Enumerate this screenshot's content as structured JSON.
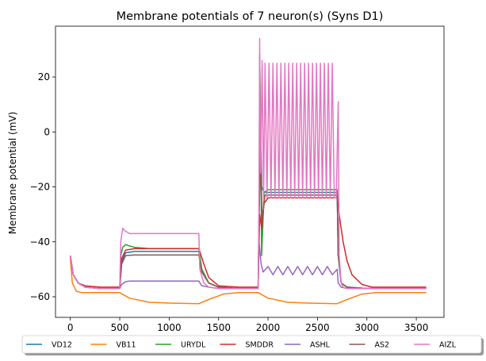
{
  "chart_data": {
    "type": "line",
    "title": "Membrane potentials of 7 neuron(s) (Syns D1)",
    "xlabel": "",
    "ylabel": "Membrane potential (mV)",
    "xlim": [
      -150,
      3780
    ],
    "ylim": [
      -67.5,
      38.5
    ],
    "xticks": [
      0,
      500,
      1000,
      1500,
      2000,
      2500,
      3000,
      3500
    ],
    "yticks": [
      -60,
      -40,
      -20,
      0,
      20
    ],
    "grid": false,
    "legend_position": "bottom-outside",
    "series": [
      {
        "name": "VD12",
        "color": "#1f77b4",
        "x": [
          0,
          30,
          80,
          150,
          300,
          500,
          520,
          560,
          650,
          900,
          1300,
          1330,
          1400,
          1500,
          1700,
          1900,
          1910,
          1925,
          1935,
          1960,
          2000,
          2100,
          2400,
          2700,
          2710,
          2740,
          2800,
          3000,
          3600
        ],
        "y": [
          -45,
          -52,
          -55,
          -56.5,
          -57,
          -57,
          -47,
          -44,
          -43.5,
          -43.5,
          -43.5,
          -50,
          -55,
          -56.5,
          -57,
          -57,
          -30,
          5,
          -20,
          -22,
          -22,
          -22,
          -22,
          -22,
          -45,
          -55,
          -56.5,
          -57,
          -57
        ]
      },
      {
        "name": "VB11",
        "color": "#ff7f0e",
        "x": [
          0,
          20,
          60,
          120,
          250,
          500,
          600,
          800,
          1000,
          1300,
          1400,
          1550,
          1700,
          1900,
          2000,
          2200,
          2400,
          2700,
          2800,
          2950,
          3100,
          3300,
          3600
        ],
        "y": [
          -46,
          -55,
          -58,
          -58.5,
          -58.5,
          -58.5,
          -60.5,
          -62,
          -62.3,
          -62.5,
          -61,
          -59,
          -58.5,
          -58.5,
          -60.5,
          -62,
          -62.3,
          -62.5,
          -61,
          -59,
          -58.5,
          -58.5,
          -58.5
        ]
      },
      {
        "name": "URYDL",
        "color": "#2ca02c",
        "x": [
          0,
          30,
          80,
          150,
          300,
          500,
          510,
          530,
          560,
          600,
          650,
          800,
          1300,
          1330,
          1400,
          1500,
          1700,
          1900,
          1910,
          1915,
          1925,
          1935,
          1960,
          2000,
          2100,
          2400,
          2700,
          2710,
          2740,
          2800,
          3000,
          3600
        ],
        "y": [
          -45,
          -52,
          -55,
          -56.5,
          -57,
          -57,
          -45,
          -42,
          -41,
          -41.5,
          -42,
          -42.5,
          -42.5,
          -50,
          -55,
          -56.5,
          -57,
          -57,
          -30,
          28,
          5,
          -45,
          -22,
          -21,
          -21,
          -21,
          -21,
          -45,
          -55,
          -56.5,
          -57,
          -57
        ]
      },
      {
        "name": "SMDDR",
        "color": "#d62728",
        "x": [
          0,
          30,
          80,
          150,
          300,
          500,
          520,
          560,
          650,
          900,
          1300,
          1350,
          1400,
          1500,
          1700,
          1900,
          1915,
          1935,
          1960,
          2000,
          2100,
          2400,
          2700,
          2720,
          2760,
          2800,
          2850,
          2950,
          3050,
          3600
        ],
        "y": [
          -45,
          -52,
          -55,
          -56,
          -56.5,
          -56.5,
          -46,
          -43,
          -42.5,
          -42.5,
          -42.5,
          -48,
          -53,
          -56,
          -56.5,
          -56.5,
          -30,
          -35,
          -26,
          -24,
          -24,
          -24,
          -24,
          -30,
          -40,
          -47,
          -52,
          -55.5,
          -56.5,
          -56.5
        ]
      },
      {
        "name": "ASHL",
        "color": "#9467bd",
        "x": [
          0,
          30,
          80,
          150,
          300,
          500,
          520,
          560,
          600,
          650,
          800,
          1300,
          1330,
          1400,
          1500,
          1700,
          1900,
          1910,
          1930,
          1950,
          2000,
          2050,
          2100,
          2150,
          2200,
          2250,
          2300,
          2350,
          2400,
          2450,
          2500,
          2550,
          2600,
          2650,
          2700,
          2710,
          2740,
          2800,
          3000,
          3600
        ],
        "y": [
          -45,
          -52,
          -55,
          -56.5,
          -57,
          -57,
          -55.5,
          -54.5,
          -54.3,
          -54.3,
          -54.3,
          -54.3,
          -56,
          -56.5,
          -57,
          -57,
          -57,
          -40,
          -48,
          -51,
          -49,
          -52,
          -49,
          -52,
          -49,
          -52,
          -49,
          -52,
          -49,
          -52,
          -49,
          -52,
          -49,
          -52,
          -50,
          -55,
          -56.5,
          -57,
          -57,
          -57
        ]
      },
      {
        "name": "AS2",
        "color": "#8c564b",
        "x": [
          0,
          30,
          80,
          150,
          300,
          500,
          520,
          560,
          650,
          900,
          1300,
          1330,
          1400,
          1500,
          1700,
          1900,
          1910,
          1925,
          1940,
          1970,
          2000,
          2100,
          2400,
          2700,
          2710,
          2740,
          2800,
          3000,
          3600
        ],
        "y": [
          -45,
          -52,
          -55,
          -56.5,
          -57,
          -57,
          -48,
          -45,
          -44.8,
          -44.8,
          -44.8,
          -51,
          -55,
          -56.5,
          -57,
          -57,
          -30,
          -10,
          -32,
          -23,
          -23,
          -23,
          -23,
          -23,
          -45,
          -55,
          -56.5,
          -57,
          -57
        ]
      },
      {
        "name": "AIZL",
        "color": "#e377c2",
        "x": [
          0,
          30,
          80,
          150,
          300,
          500,
          510,
          530,
          550,
          600,
          700,
          1000,
          1300,
          1310,
          1350,
          1400,
          1500,
          1700,
          1900,
          1910,
          1915,
          1925,
          1940,
          1955,
          1970,
          1990,
          2010,
          2030,
          2050,
          2070,
          2090,
          2110,
          2130,
          2150,
          2170,
          2190,
          2210,
          2230,
          2250,
          2270,
          2290,
          2310,
          2330,
          2350,
          2370,
          2390,
          2410,
          2430,
          2450,
          2470,
          2490,
          2510,
          2530,
          2550,
          2570,
          2590,
          2610,
          2630,
          2650,
          2670,
          2690,
          2710,
          2720,
          2740,
          2760,
          2800,
          3000,
          3600
        ],
        "y": [
          -45,
          -52,
          -55,
          -56.5,
          -57,
          -57,
          -40,
          -35,
          -36,
          -37,
          -37,
          -37,
          -37,
          -50,
          -55,
          -56.5,
          -57,
          -57,
          -57,
          -20,
          34,
          -15,
          26,
          -25,
          25,
          -24,
          25,
          -24,
          25,
          -24,
          25,
          -24,
          25,
          -24,
          25,
          -24,
          25,
          -24,
          25,
          -24,
          25,
          -24,
          25,
          -24,
          25,
          -24,
          25,
          -24,
          25,
          -24,
          25,
          -24,
          25,
          -24,
          25,
          -24,
          25,
          -24,
          25,
          -24,
          -24,
          11,
          -45,
          -55,
          -56.5,
          -57,
          -57,
          -57
        ]
      }
    ]
  }
}
